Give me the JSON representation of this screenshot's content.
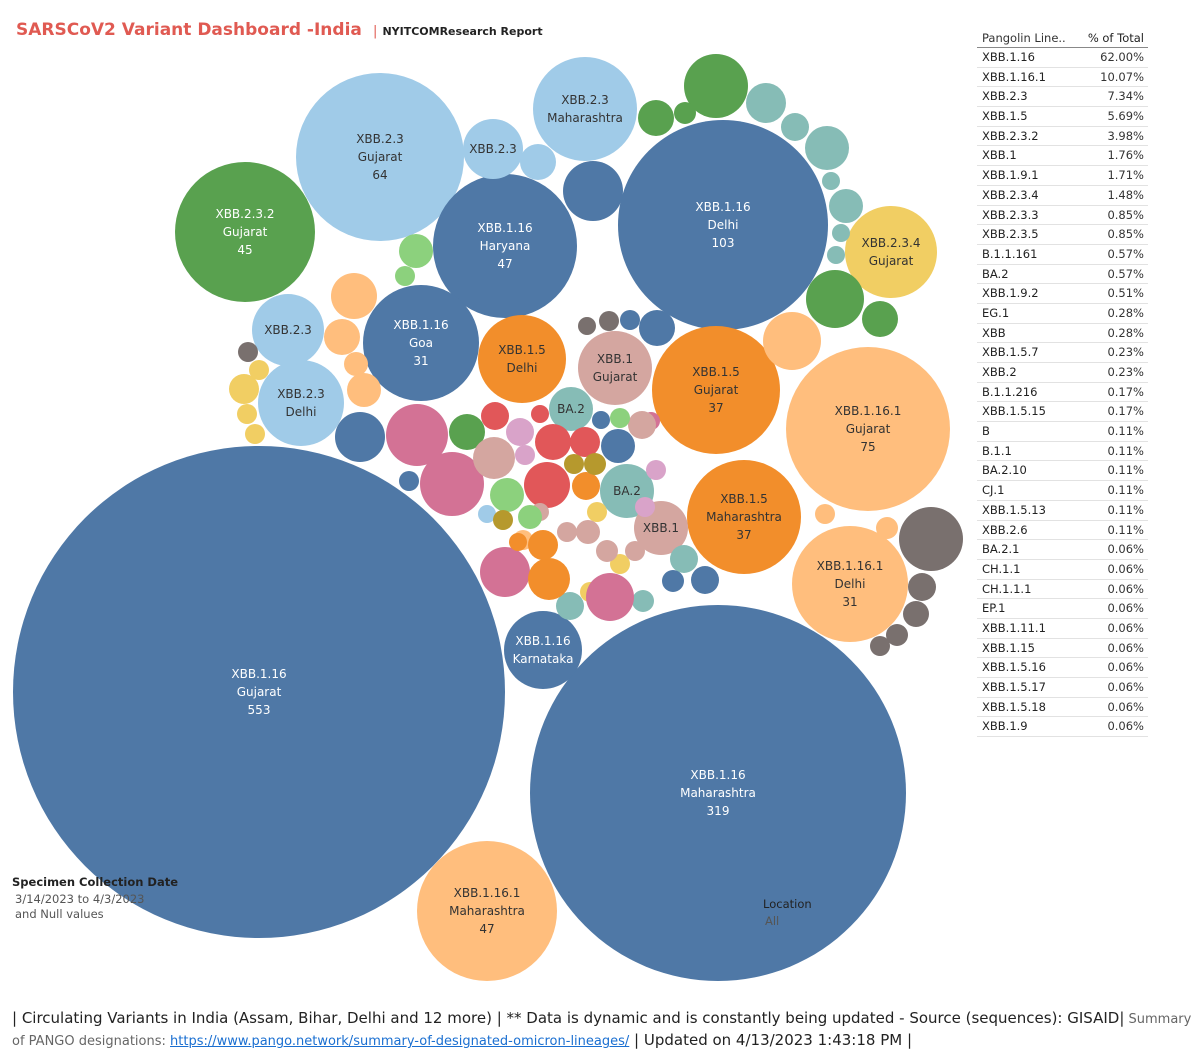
{
  "header": {
    "title": "SARSCoV2 Variant Dashboard -India",
    "separator": "|",
    "subtitle": "NYITCOMResearch Report"
  },
  "colors": {
    "blue_dark": "#4f78a6",
    "blue_light": "#a0cbe8",
    "green": "#59a14f",
    "green_light": "#8cd17d",
    "orange": "#f28e2b",
    "orange_light": "#ffbe7d",
    "yellow": "#f1ce63",
    "teal": "#86bcb6",
    "tan": "#d4a6a0",
    "brown": "#79706e",
    "pink": "#d37295",
    "red": "#e15759",
    "lilac": "#d9a3c9",
    "olive": "#b6992d",
    "title_red": "#e05a52"
  },
  "chart_data": {
    "type": "bubble",
    "title": "SARSCoV2 Variant Dashboard -India",
    "size_measure": "count",
    "labeled_bubbles": [
      {
        "lineage": "XBB.1.16",
        "location": "Gujarat",
        "value": 553,
        "color": "blue_dark"
      },
      {
        "lineage": "XBB.1.16",
        "location": "Maharashtra",
        "value": 319,
        "color": "blue_dark"
      },
      {
        "lineage": "XBB.1.16",
        "location": "Delhi",
        "value": 103,
        "color": "blue_dark"
      },
      {
        "lineage": "XBB.1.16.1",
        "location": "Gujarat",
        "value": 75,
        "color": "orange_light"
      },
      {
        "lineage": "XBB.2.3",
        "location": "Gujarat",
        "value": 64,
        "color": "blue_light"
      },
      {
        "lineage": "XBB.1.16",
        "location": "Haryana",
        "value": 47,
        "color": "blue_dark"
      },
      {
        "lineage": "XBB.1.16.1",
        "location": "Maharashtra",
        "value": 47,
        "color": "orange_light"
      },
      {
        "lineage": "XBB.2.3.2",
        "location": "Gujarat",
        "value": 45,
        "color": "green"
      },
      {
        "lineage": "XBB.1.5",
        "location": "Gujarat",
        "value": 37,
        "color": "orange"
      },
      {
        "lineage": "XBB.1.5",
        "location": "Maharashtra",
        "value": 37,
        "color": "orange"
      },
      {
        "lineage": "XBB.1.16",
        "location": "Goa",
        "value": 31,
        "color": "blue_dark"
      },
      {
        "lineage": "XBB.1.16.1",
        "location": "Delhi",
        "value": 31,
        "color": "orange_light"
      },
      {
        "lineage": "XBB.2.3",
        "location": "Maharashtra",
        "value": null,
        "color": "blue_light"
      },
      {
        "lineage": "XBB.2.3.4",
        "location": "Gujarat",
        "value": null,
        "color": "yellow"
      },
      {
        "lineage": "XBB.1.16",
        "location": "Karnataka",
        "value": null,
        "color": "blue_dark"
      },
      {
        "lineage": "XBB.1.5",
        "location": "Delhi",
        "value": null,
        "color": "orange"
      },
      {
        "lineage": "XBB.1",
        "location": "Gujarat",
        "value": null,
        "color": "tan"
      },
      {
        "lineage": "XBB.2.3",
        "location": "Delhi",
        "value": null,
        "color": "blue_light"
      },
      {
        "lineage": "XBB.2.3",
        "location": "",
        "value": null,
        "color": "blue_light"
      },
      {
        "lineage": "XBB.2.3",
        "location": "",
        "value": null,
        "color": "blue_light"
      },
      {
        "lineage": "BA.2",
        "location": "",
        "value": null,
        "color": "teal"
      },
      {
        "lineage": "BA.2",
        "location": "",
        "value": null,
        "color": "teal"
      },
      {
        "lineage": "XBB.1",
        "location": "",
        "value": null,
        "color": "tan"
      }
    ],
    "unlabeled_colors": [
      "green",
      "green",
      "green",
      "green",
      "green_light",
      "green_light",
      "green",
      "green",
      "teal",
      "teal",
      "teal",
      "teal",
      "teal",
      "teal",
      "teal",
      "teal",
      "teal",
      "teal",
      "yellow",
      "yellow",
      "yellow",
      "yellow",
      "yellow",
      "yellow",
      "yellow",
      "orange_light",
      "orange_light",
      "orange_light",
      "orange_light",
      "orange_light",
      "orange_light",
      "orange_light",
      "orange_light",
      "brown",
      "brown",
      "brown",
      "brown",
      "brown",
      "brown",
      "brown",
      "brown",
      "blue_dark",
      "blue_dark",
      "blue_dark",
      "blue_dark",
      "blue_dark",
      "blue_dark",
      "blue_dark",
      "blue_dark",
      "blue_dark",
      "blue_light",
      "blue_light",
      "pink",
      "pink",
      "pink",
      "pink",
      "pink",
      "red",
      "red",
      "red",
      "red",
      "red",
      "tan",
      "tan",
      "tan",
      "tan",
      "tan",
      "tan",
      "tan",
      "green_light",
      "green_light",
      "green_light",
      "orange",
      "orange",
      "orange",
      "orange",
      "lilac",
      "lilac",
      "lilac",
      "lilac",
      "olive",
      "olive",
      "olive"
    ]
  },
  "side_table": {
    "columns": [
      "Pangolin Line..",
      "% of Total"
    ],
    "rows": [
      [
        "XBB.1.16",
        "62.00%"
      ],
      [
        "XBB.1.16.1",
        "10.07%"
      ],
      [
        "XBB.2.3",
        "7.34%"
      ],
      [
        "XBB.1.5",
        "5.69%"
      ],
      [
        "XBB.2.3.2",
        "3.98%"
      ],
      [
        "XBB.1",
        "1.76%"
      ],
      [
        "XBB.1.9.1",
        "1.71%"
      ],
      [
        "XBB.2.3.4",
        "1.48%"
      ],
      [
        "XBB.2.3.3",
        "0.85%"
      ],
      [
        "XBB.2.3.5",
        "0.85%"
      ],
      [
        "B.1.1.161",
        "0.57%"
      ],
      [
        "BA.2",
        "0.57%"
      ],
      [
        "XBB.1.9.2",
        "0.51%"
      ],
      [
        "EG.1",
        "0.28%"
      ],
      [
        "XBB",
        "0.28%"
      ],
      [
        "XBB.1.5.7",
        "0.23%"
      ],
      [
        "XBB.2",
        "0.23%"
      ],
      [
        "B.1.1.216",
        "0.17%"
      ],
      [
        "XBB.1.5.15",
        "0.17%"
      ],
      [
        "B",
        "0.11%"
      ],
      [
        "B.1.1",
        "0.11%"
      ],
      [
        "BA.2.10",
        "0.11%"
      ],
      [
        "CJ.1",
        "0.11%"
      ],
      [
        "XBB.1.5.13",
        "0.11%"
      ],
      [
        "XBB.2.6",
        "0.11%"
      ],
      [
        "BA.2.1",
        "0.06%"
      ],
      [
        "CH.1.1",
        "0.06%"
      ],
      [
        "CH.1.1.1",
        "0.06%"
      ],
      [
        "EP.1",
        "0.06%"
      ],
      [
        "XBB.1.11.1",
        "0.06%"
      ],
      [
        "XBB.1.15",
        "0.06%"
      ],
      [
        "XBB.1.5.16",
        "0.06%"
      ],
      [
        "XBB.1.5.17",
        "0.06%"
      ],
      [
        "XBB.1.5.18",
        "0.06%"
      ],
      [
        "XBB.1.9",
        "0.06%"
      ]
    ]
  },
  "filters": {
    "date_title": "Specimen Collection Date",
    "date_value": "3/14/2023 to 4/3/2023",
    "null_note": "and Null values",
    "location_title": "Location",
    "location_value": "All"
  },
  "footer": {
    "part1": "| Circulating Variants in India (Assam, Bihar, Delhi and 12 more)  |  ** Data is dynamic and is constantly being updated - Source (sequences): GISAID|",
    "summary_label": " Summary of PANGO designations: ",
    "link_text": "https://www.pango.network/summary-of-designated-omicron-lineages/",
    "part2": " | Updated on 4/13/2023 1:43:18 PM |"
  }
}
